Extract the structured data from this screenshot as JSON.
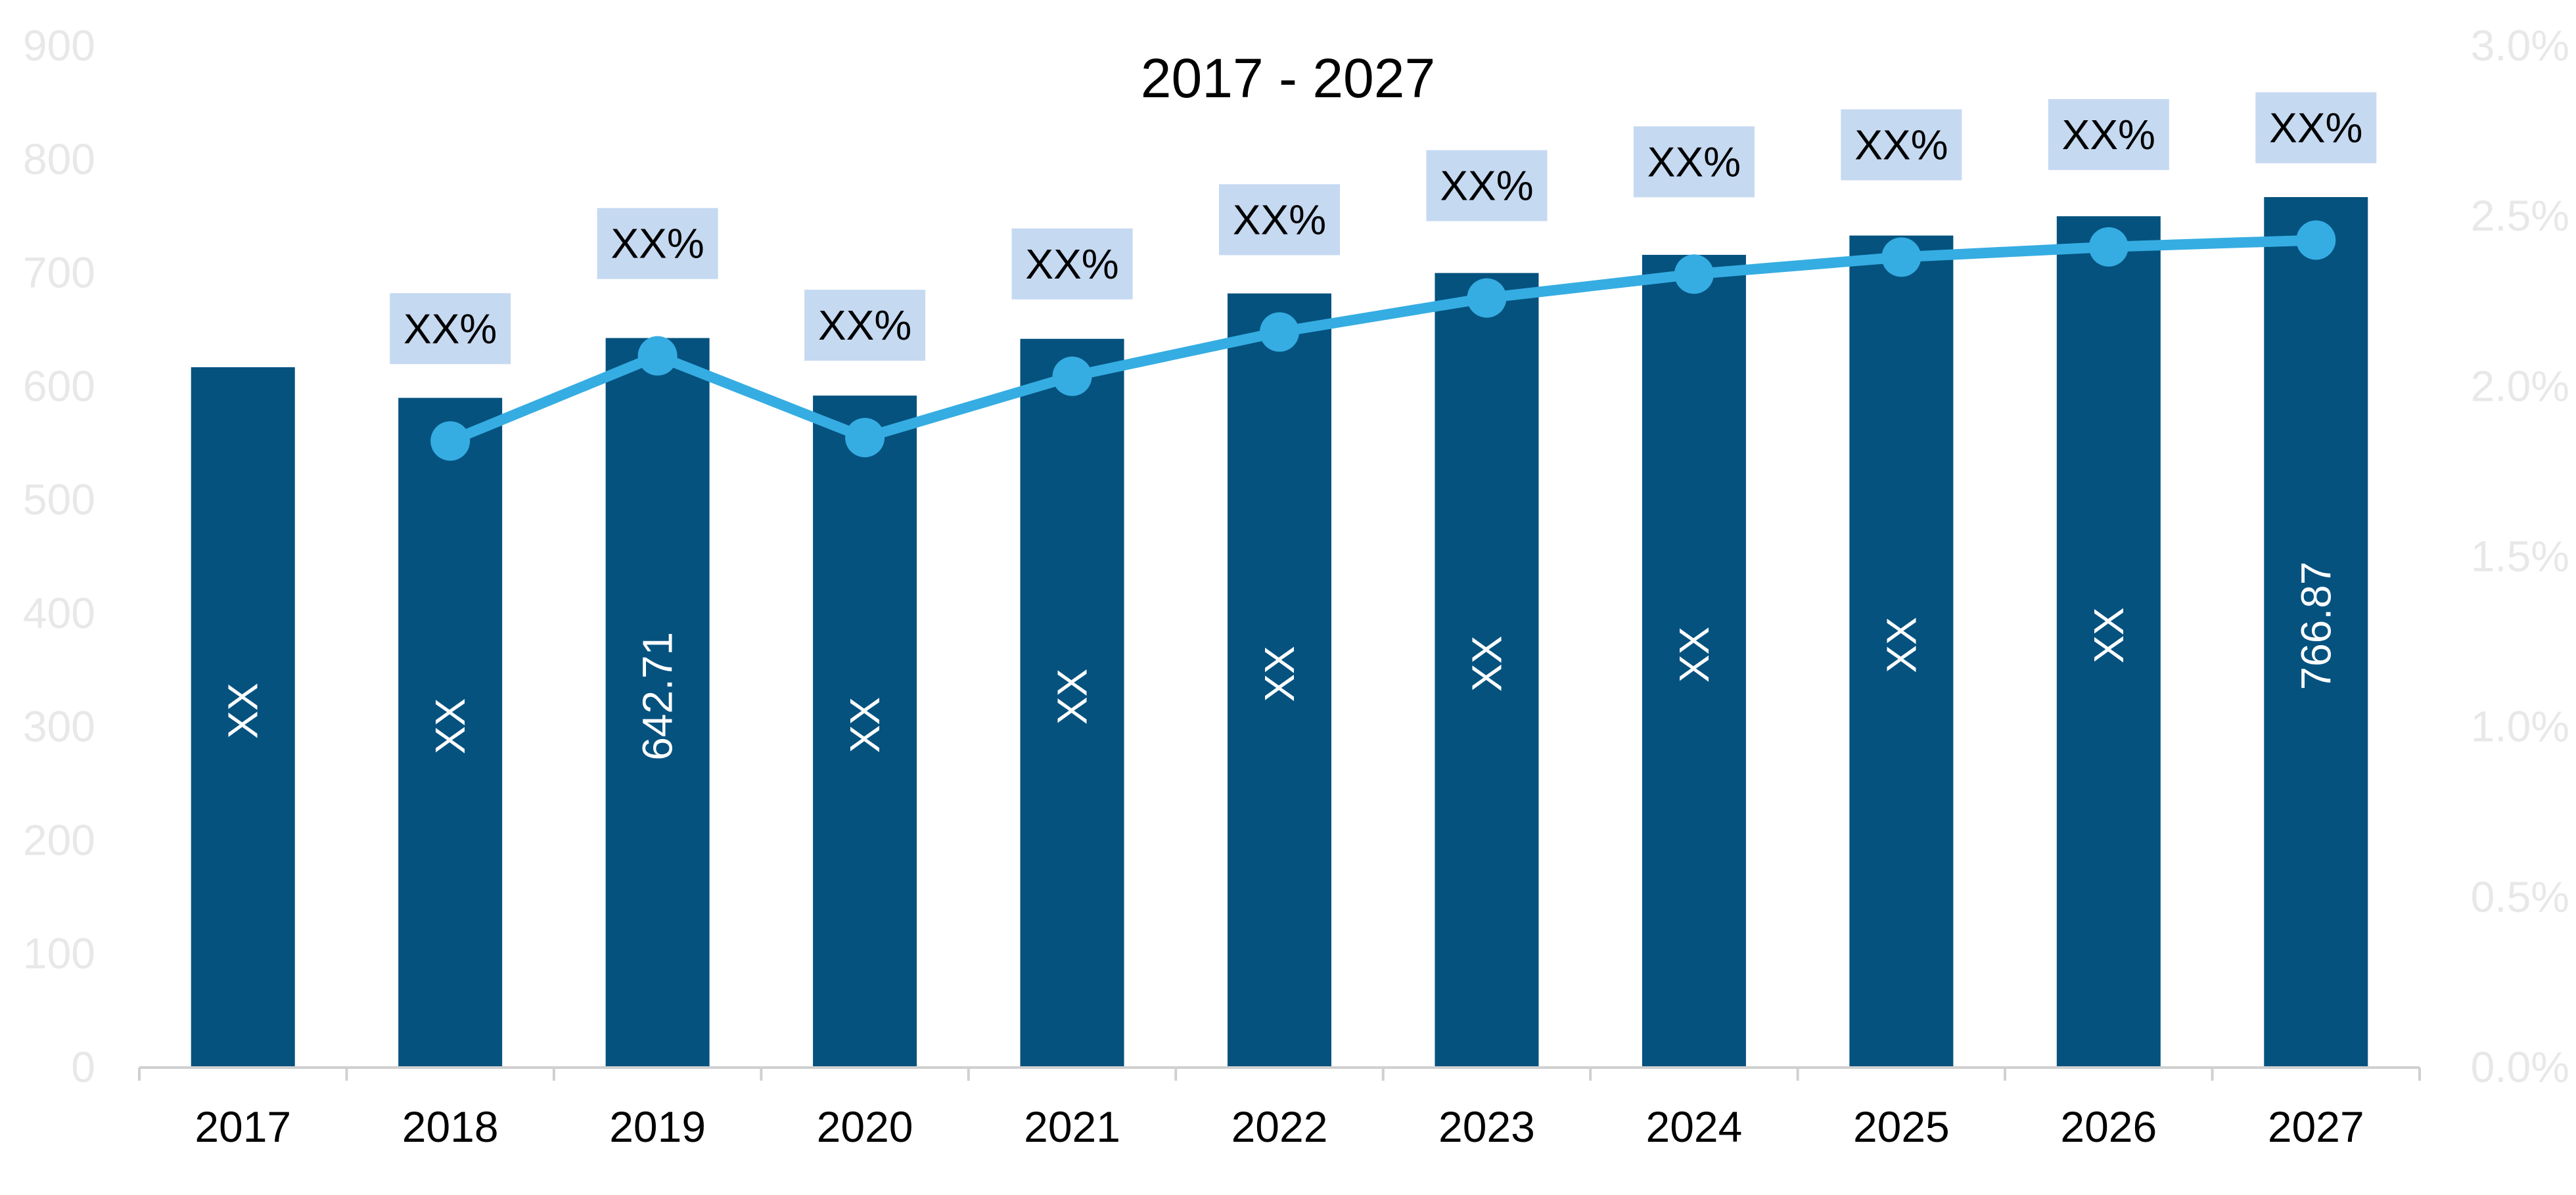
{
  "colors": {
    "bar": "#05527f",
    "line": "#35ade2",
    "label_bg": "#c5d9f1",
    "axis": "#d0d0d0",
    "tick_text_faint": "#e8e8e8"
  },
  "chart_data": {
    "type": "bar",
    "title": "2017 - 2027",
    "categories": [
      "2017",
      "2018",
      "2019",
      "2020",
      "2021",
      "2022",
      "2023",
      "2024",
      "2025",
      "2026",
      "2027"
    ],
    "y_left": {
      "ylim": [
        0,
        900
      ],
      "ticks": [
        "0",
        "100",
        "200",
        "300",
        "400",
        "500",
        "600",
        "700",
        "800",
        "900"
      ]
    },
    "y_right": {
      "ylim": [
        0,
        3.0
      ],
      "ticks": [
        "0.0%",
        "0.5%",
        "1.0%",
        "1.5%",
        "2.0%",
        "2.5%",
        "3.0%"
      ]
    },
    "series": [
      {
        "type": "bar",
        "axis": "left",
        "values": [
          617,
          590,
          642.71,
          592,
          642,
          682,
          700,
          716,
          733,
          750,
          766.87
        ],
        "labels": [
          "XX",
          "XX",
          "642.71",
          "XX",
          "XX",
          "XX",
          "XX",
          "XX",
          "XX",
          "XX",
          "766.87"
        ]
      },
      {
        "type": "line",
        "axis": "right",
        "values": [
          null,
          1.84,
          2.09,
          1.85,
          2.03,
          2.16,
          2.26,
          2.33,
          2.38,
          2.41,
          2.43
        ],
        "labels": [
          null,
          "XX%",
          "XX%",
          "XX%",
          "XX%",
          "XX%",
          "XX%",
          "XX%",
          "XX%",
          "XX%",
          "XX%"
        ]
      }
    ],
    "grid": false,
    "legend": "none"
  }
}
